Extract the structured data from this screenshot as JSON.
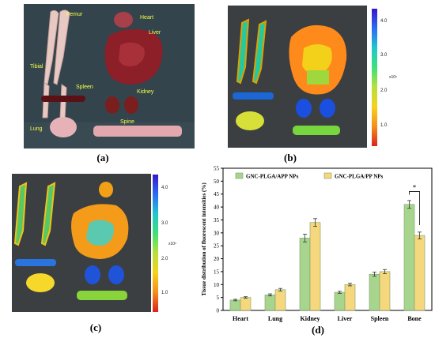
{
  "panels": {
    "a": {
      "label": "(a)",
      "organ_labels": [
        "Femur",
        "Heart",
        "Liver",
        "Tibial",
        "Spleen",
        "Kidney",
        "Lung",
        "Spine"
      ]
    },
    "b": {
      "label": "(b)",
      "colorbar_ticks": [
        "4.0",
        "3.0",
        "2.0",
        "1.0"
      ],
      "colorbar_unit": "x10⁶"
    },
    "c": {
      "label": "(c)",
      "colorbar_ticks": [
        "4.0",
        "3.0",
        "2.0",
        "1.0"
      ],
      "colorbar_unit": "x10⁶"
    },
    "d": {
      "label": "(d)"
    }
  },
  "chart_data": {
    "type": "bar",
    "categories": [
      "Heart",
      "Lung",
      "Kidney",
      "Liver",
      "Spleen",
      "Bone"
    ],
    "series": [
      {
        "name": "GNC-PLGA/APP NPs",
        "values": [
          4,
          6,
          28,
          7,
          14,
          41
        ],
        "errors": [
          0.3,
          0.4,
          1.5,
          0.4,
          0.8,
          1.5
        ],
        "color": "#a8d58e"
      },
      {
        "name": "GNC-PLGA/PP NPs",
        "values": [
          5,
          8,
          34,
          10,
          15,
          29
        ],
        "errors": [
          0.3,
          0.5,
          1.5,
          0.5,
          0.8,
          1.3
        ],
        "color": "#f5d77e"
      }
    ],
    "ylabel": "Tissue distribution of fluorescent intensities (%)",
    "ylim": [
      0,
      55
    ],
    "yticks": [
      "0",
      "5",
      "10",
      "15",
      "20",
      "25",
      "30",
      "35",
      "40",
      "45",
      "50",
      "55"
    ],
    "legend": "top",
    "annotation": "*"
  }
}
